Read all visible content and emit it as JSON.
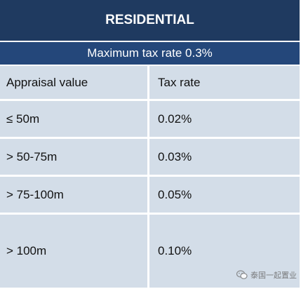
{
  "table": {
    "title": "RESIDENTIAL",
    "subtitle": "Maximum tax rate 0.3%",
    "header": {
      "col1": "Appraisal value",
      "col2": "Tax rate"
    },
    "rows": [
      {
        "value": "≤ 50m",
        "rate": "0.02%"
      },
      {
        "value": "> 50-75m",
        "rate": "0.03%"
      },
      {
        "value": "> 75-100m",
        "rate": "0.05%"
      },
      {
        "value": "> 100m",
        "rate": "0.10%"
      }
    ]
  },
  "colors": {
    "title_bg": "#1f3a60",
    "subtitle_bg": "#24477a",
    "cell_bg": "#d3dde8"
  },
  "watermark": {
    "icon": "wechat-icon",
    "text": "泰国一起置业"
  }
}
